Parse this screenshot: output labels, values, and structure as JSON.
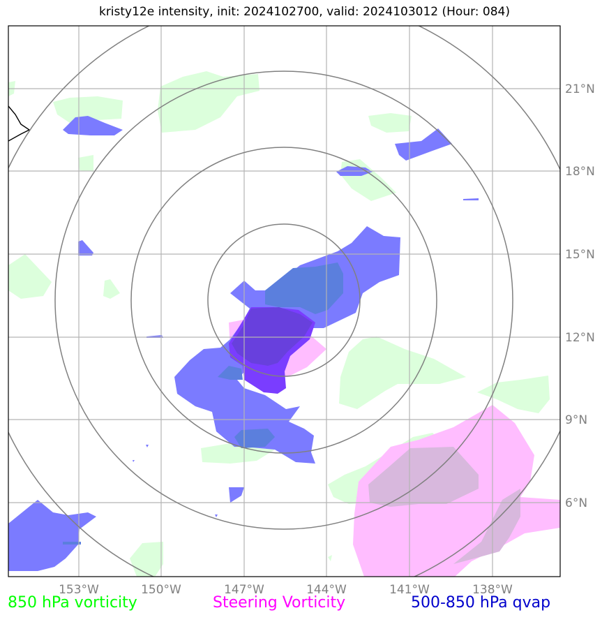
{
  "title": "kristy12e intensity, init: 2024102700, valid: 2024103012 (Hour: 084)",
  "chart_data": {
    "type": "map",
    "x_ticks": [
      "153°W",
      "150°W",
      "147°W",
      "144°W",
      "141°W",
      "138°W"
    ],
    "y_ticks": [
      "21°N",
      "18°N",
      "15°N",
      "12°N",
      "9°N",
      "6°N"
    ],
    "x_tick_values": [
      -153,
      -150,
      -147,
      -144,
      -141,
      -138
    ],
    "y_tick_values": [
      21,
      18,
      15,
      12,
      9,
      6
    ],
    "xlim": [
      -155.5,
      -135.4
    ],
    "ylim": [
      3.2,
      23.2
    ],
    "grid": true,
    "range_rings_center": [
      -145.5,
      13.3
    ],
    "range_rings_degrees": [
      2.7,
      5.5,
      8.3,
      11.1
    ],
    "legend_placement": "bottom",
    "legend": [
      {
        "label": "850 hPa vorticity",
        "color": "#00ff00"
      },
      {
        "label": "Steering Vorticity",
        "color": "#ff00ff"
      },
      {
        "label": "500-850 hPa qvap",
        "color": "#0000cc"
      }
    ],
    "fill_colors": {
      "vorticity_850": "#dcffdc",
      "steering": "#ffbdff",
      "qvap": "#7b7bff",
      "qvap_dark": "#5b7fdd",
      "overlap": "#7a3dff"
    }
  }
}
